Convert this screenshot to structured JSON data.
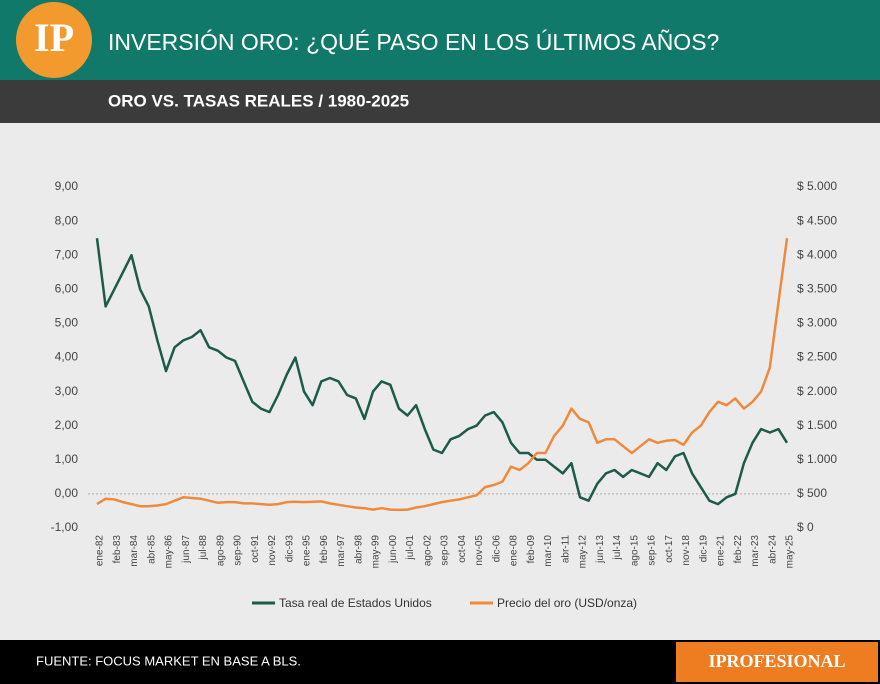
{
  "header": {
    "logo": "IP",
    "title": "INVERSIÓN ORO: ¿QUÉ PASO EN LOS ÚLTIMOS AÑOS?",
    "subtitle": "ORO VS. TASAS REALES / 1980-2025"
  },
  "footer": {
    "source": "FUENTE: FOCUS MARKET EN BASE A BLS.",
    "brand": "IPROFESIONAL"
  },
  "chart_data": {
    "type": "line",
    "categories": [
      "ene-82",
      null,
      "feb-83",
      null,
      "mar-84",
      null,
      "abr-85",
      null,
      "may-86",
      null,
      "jun-87",
      null,
      "jul-88",
      null,
      "ago-89",
      null,
      "sep-90",
      null,
      "oct-91",
      null,
      "nov-92",
      null,
      "dic-93",
      null,
      "ene-95",
      null,
      "feb-96",
      null,
      "mar-97",
      null,
      "abr-98",
      null,
      "may-99",
      null,
      "jun-00",
      null,
      "jul-01",
      null,
      "ago-02",
      null,
      "sep-03",
      null,
      "oct-04",
      null,
      "nov-05",
      null,
      "dic-06",
      null,
      "ene-08",
      null,
      "feb-09",
      null,
      "mar-10",
      null,
      "abr-11",
      null,
      "may-12",
      null,
      "jun-13",
      null,
      "jul-14",
      null,
      "ago-15",
      null,
      "sep-16",
      null,
      "oct-17",
      null,
      "nov-18",
      null,
      "dic-19",
      null,
      "ene-21",
      null,
      "feb-22",
      null,
      "mar-23",
      null,
      "abr-24",
      null,
      "may-25"
    ],
    "series": [
      {
        "name": "Tasa real de Estados Unidos",
        "color": "#1d5a49",
        "axis": "y",
        "values": [
          7.5,
          5.5,
          6.0,
          6.5,
          7.0,
          6.0,
          5.5,
          4.5,
          3.6,
          4.3,
          4.5,
          4.6,
          4.8,
          4.3,
          4.2,
          4.0,
          3.9,
          3.3,
          2.7,
          2.5,
          2.4,
          2.9,
          3.5,
          4.0,
          3.0,
          2.6,
          3.3,
          3.4,
          3.3,
          2.9,
          2.8,
          2.2,
          3.0,
          3.3,
          3.2,
          2.5,
          2.3,
          2.6,
          1.9,
          1.3,
          1.2,
          1.6,
          1.7,
          1.9,
          2.0,
          2.3,
          2.4,
          2.1,
          1.5,
          1.2,
          1.2,
          1.0,
          1.0,
          0.8,
          0.6,
          0.9,
          -0.1,
          -0.2,
          0.3,
          0.6,
          0.7,
          0.5,
          0.7,
          0.6,
          0.5,
          0.9,
          0.7,
          1.1,
          1.2,
          0.6,
          0.2,
          -0.2,
          -0.3,
          -0.1,
          0.0,
          0.9,
          1.5,
          1.9,
          1.8,
          1.9,
          1.5
        ]
      },
      {
        "name": "Precio del oro (USD/onza)",
        "color": "#ef8a3d",
        "axis": "y2",
        "values": [
          350,
          430,
          420,
          380,
          350,
          320,
          320,
          330,
          350,
          400,
          450,
          440,
          430,
          400,
          370,
          380,
          380,
          360,
          360,
          350,
          340,
          350,
          380,
          385,
          380,
          385,
          390,
          360,
          340,
          320,
          300,
          290,
          270,
          290,
          270,
          265,
          270,
          300,
          320,
          350,
          380,
          400,
          420,
          450,
          480,
          600,
          630,
          680,
          900,
          850,
          950,
          1100,
          1100,
          1350,
          1500,
          1750,
          1600,
          1550,
          1250,
          1300,
          1300,
          1200,
          1100,
          1200,
          1300,
          1250,
          1280,
          1290,
          1220,
          1400,
          1500,
          1700,
          1850,
          1800,
          1900,
          1750,
          1850,
          2000,
          2350,
          3300,
          4250
        ]
      }
    ],
    "ylim": [
      -1,
      9
    ],
    "yticks": [
      {
        "value": 9,
        "label": "9,00"
      },
      {
        "value": 8,
        "label": "8,00"
      },
      {
        "value": 7,
        "label": "7,00"
      },
      {
        "value": 6,
        "label": "6,00"
      },
      {
        "value": 5,
        "label": "5,00"
      },
      {
        "value": 4,
        "label": "4,00"
      },
      {
        "value": 3,
        "label": "3,00"
      },
      {
        "value": 2,
        "label": "2,00"
      },
      {
        "value": 1,
        "label": "1,00"
      },
      {
        "value": 0,
        "label": "0,00"
      },
      {
        "value": -1,
        "label": "-1,00"
      }
    ],
    "y2lim": [
      0,
      5000
    ],
    "y2ticks": [
      {
        "value": 5000,
        "label": "$ 5.000"
      },
      {
        "value": 4500,
        "label": "$ 4.500"
      },
      {
        "value": 4000,
        "label": "$ 4.000"
      },
      {
        "value": 3500,
        "label": "$ 3.500"
      },
      {
        "value": 3000,
        "label": "$ 3.000"
      },
      {
        "value": 2500,
        "label": "$ 2.500"
      },
      {
        "value": 2000,
        "label": "$ 2.000"
      },
      {
        "value": 1500,
        "label": "$ 1.500"
      },
      {
        "value": 1000,
        "label": "$ 1.000"
      },
      {
        "value": 500,
        "label": "$ 500"
      },
      {
        "value": 0,
        "label": "$ 0"
      }
    ],
    "legend": "bottom"
  }
}
